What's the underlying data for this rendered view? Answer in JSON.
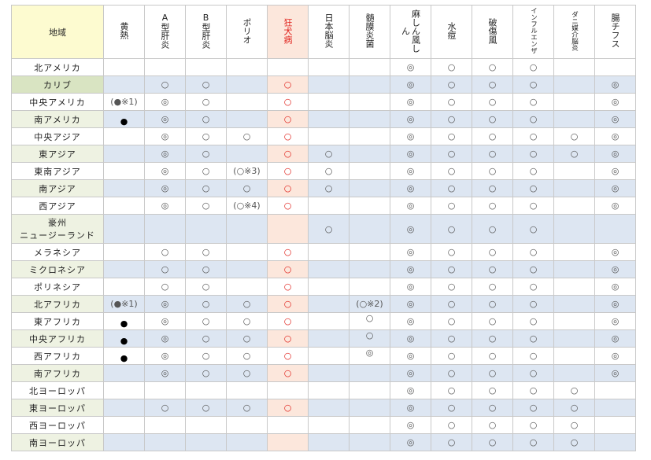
{
  "table": {
    "region_header": "地域",
    "columns": [
      {
        "key": "yf",
        "label": "黄熱"
      },
      {
        "key": "hepa",
        "label": "A型肝炎"
      },
      {
        "key": "hepb",
        "label": "B型肝炎"
      },
      {
        "key": "polio",
        "label": "ポリオ"
      },
      {
        "key": "rabies",
        "label": "狂犬病"
      },
      {
        "key": "je",
        "label": "日本脳炎"
      },
      {
        "key": "mening",
        "label": "髄膜炎菌"
      },
      {
        "key": "mr",
        "label": "麻しん風しん"
      },
      {
        "key": "varicella",
        "label": "水痘"
      },
      {
        "key": "tetanus",
        "label": "破傷風"
      },
      {
        "key": "flu",
        "label": "インフルエンザ"
      },
      {
        "key": "tbe",
        "label": "ダニ媒介脳炎"
      },
      {
        "key": "typhoid",
        "label": "腸チフス"
      }
    ],
    "colors": {
      "region_header_bg": "#fdfbd0",
      "rabies_header_bg": "#fce7dc",
      "rabies_text": "#e0201a",
      "shaded_row_bg": "#dde6f2",
      "shaded_region_bg": "#eef2e2",
      "caribbean_region_bg": "#d9e4c2"
    },
    "rows": [
      {
        "region": "北アメリカ",
        "cells": [
          "",
          "",
          "",
          "",
          "",
          "",
          "",
          "◎",
          "○",
          "○",
          "○",
          "",
          ""
        ]
      },
      {
        "region": "カリブ",
        "cells": [
          "",
          "○",
          "○",
          "",
          "○",
          "",
          "",
          "◎",
          "○",
          "○",
          "○",
          "",
          "◎"
        ]
      },
      {
        "region": "中央アメリカ",
        "cells": [
          "(●※1)",
          "◎",
          "○",
          "",
          "○",
          "",
          "",
          "◎",
          "○",
          "○",
          "○",
          "",
          "◎"
        ]
      },
      {
        "region": "南アメリカ",
        "cells": [
          "●",
          "◎",
          "○",
          "",
          "○",
          "",
          "",
          "◎",
          "○",
          "○",
          "○",
          "",
          "◎"
        ]
      },
      {
        "region": "中央アジア",
        "cells": [
          "",
          "◎",
          "○",
          "○",
          "○",
          "",
          "",
          "◎",
          "○",
          "○",
          "○",
          "○",
          "◎"
        ]
      },
      {
        "region": "東アジア",
        "cells": [
          "",
          "◎",
          "○",
          "",
          "○",
          "○",
          "",
          "◎",
          "○",
          "○",
          "○",
          "○",
          "◎"
        ]
      },
      {
        "region": "東南アジア",
        "cells": [
          "",
          "◎",
          "○",
          "(○※3)",
          "○",
          "○",
          "",
          "◎",
          "○",
          "○",
          "○",
          "",
          "◎"
        ]
      },
      {
        "region": "南アジア",
        "cells": [
          "",
          "◎",
          "○",
          "○",
          "○",
          "○",
          "",
          "◎",
          "○",
          "○",
          "○",
          "",
          "◎"
        ]
      },
      {
        "region": "西アジア",
        "cells": [
          "",
          "◎",
          "○",
          "(○※4)",
          "○",
          "",
          "",
          "◎",
          "○",
          "○",
          "○",
          "",
          "◎"
        ]
      },
      {
        "region": "豪州",
        "region_line2": "ニュージーランド",
        "cells": [
          "",
          "",
          "",
          "",
          "",
          "○",
          "",
          "◎",
          "○",
          "○",
          "○",
          "",
          ""
        ]
      },
      {
        "region": "メラネシア",
        "cells": [
          "",
          "○",
          "○",
          "",
          "○",
          "",
          "",
          "◎",
          "○",
          "○",
          "○",
          "",
          "◎"
        ]
      },
      {
        "region": "ミクロネシア",
        "cells": [
          "",
          "○",
          "○",
          "",
          "○",
          "",
          "",
          "◎",
          "○",
          "○",
          "○",
          "",
          "◎"
        ]
      },
      {
        "region": "ポリネシア",
        "cells": [
          "",
          "○",
          "○",
          "",
          "○",
          "",
          "",
          "◎",
          "○",
          "○",
          "○",
          "",
          "◎"
        ]
      },
      {
        "region": "北アフリカ",
        "cells": [
          "(●※1)",
          "◎",
          "○",
          "○",
          "○",
          "",
          "(○※2)",
          "◎",
          "○",
          "○",
          "○",
          "",
          "◎"
        ]
      },
      {
        "region": "東アフリカ",
        "cells": [
          "●",
          "◎",
          "○",
          "○",
          "○",
          "",
          "○",
          "◎",
          "○",
          "○",
          "○",
          "",
          "◎"
        ]
      },
      {
        "region": "中央アフリカ",
        "cells": [
          "●",
          "◎",
          "○",
          "○",
          "○",
          "",
          "○",
          "◎",
          "○",
          "○",
          "○",
          "",
          "◎"
        ]
      },
      {
        "region": "西アフリカ",
        "cells": [
          "●",
          "◎",
          "○",
          "○",
          "○",
          "",
          "◎",
          "◎",
          "○",
          "○",
          "○",
          "",
          "◎"
        ]
      },
      {
        "region": "南アフリカ",
        "cells": [
          "",
          "◎",
          "○",
          "○",
          "○",
          "",
          "",
          "◎",
          "○",
          "○",
          "○",
          "",
          "◎"
        ]
      },
      {
        "region": "北ヨーロッパ",
        "cells": [
          "",
          "",
          "",
          "",
          "",
          "",
          "",
          "◎",
          "○",
          "○",
          "○",
          "○",
          ""
        ]
      },
      {
        "region": "東ヨーロッパ",
        "cells": [
          "",
          "○",
          "○",
          "○",
          "○",
          "",
          "",
          "◎",
          "○",
          "○",
          "○",
          "○",
          ""
        ]
      },
      {
        "region": "西ヨーロッパ",
        "cells": [
          "",
          "",
          "",
          "",
          "",
          "",
          "",
          "◎",
          "○",
          "○",
          "○",
          "○",
          ""
        ]
      },
      {
        "region": "南ヨーロッパ",
        "cells": [
          "",
          "",
          "",
          "",
          "",
          "",
          "",
          "◎",
          "○",
          "○",
          "○",
          "○",
          ""
        ]
      }
    ]
  }
}
